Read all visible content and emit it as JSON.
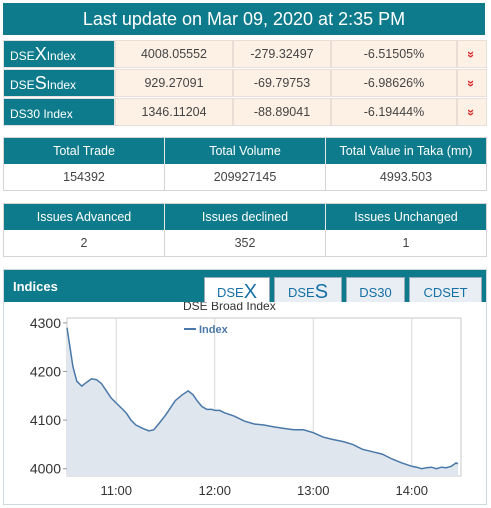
{
  "header": {
    "title": "Last update on Mar 09, 2020 at 2:35 PM"
  },
  "indices": [
    {
      "prefix": "DSE",
      "letter": "X",
      "suffix": " Index",
      "value": "4008.05552",
      "change": "-279.32497",
      "percent": "-6.51505%",
      "arrow": "»"
    },
    {
      "prefix": "DSE",
      "letter": "S",
      "suffix": " Index",
      "value": "929.27091",
      "change": "-69.79753",
      "percent": "-6.98626%",
      "arrow": "»"
    },
    {
      "prefix": "DS30 Index",
      "letter": "",
      "suffix": "",
      "value": "1346.11204",
      "change": "-88.89041",
      "percent": "-6.19444%",
      "arrow": "»"
    }
  ],
  "trade": {
    "headers": [
      "Total Trade",
      "Total Volume",
      "Total Value in Taka (mn)"
    ],
    "values": [
      "154392",
      "209927145",
      "4993.503"
    ]
  },
  "issues": {
    "headers": [
      "Issues Advanced",
      "Issues declined",
      "Issues Unchanged"
    ],
    "values": [
      "2",
      "352",
      "1"
    ]
  },
  "panel": {
    "title": "Indices",
    "tabs": [
      {
        "prefix": "DSE",
        "letter": "X",
        "active": true
      },
      {
        "prefix": "DSE",
        "letter": "S",
        "active": false
      },
      {
        "prefix": "DS30",
        "letter": "",
        "active": false
      },
      {
        "prefix": "CDSET",
        "letter": "",
        "active": false
      }
    ]
  },
  "colors": {
    "teal": "#0e7b8c",
    "down": "#d92b2b",
    "line": "#4a78a8",
    "fill": "#dfe6ee"
  },
  "chart_data": {
    "type": "area",
    "title": "DSE Broad Index",
    "legend": "Index",
    "legend_position": "top-left",
    "grid": true,
    "x_ticks": [
      "11:00",
      "12:00",
      "13:00",
      "14:00"
    ],
    "y_ticks": [
      4000,
      4100,
      4200,
      4300
    ],
    "xlim": [
      10.5,
      14.5
    ],
    "ylim": [
      3985,
      4310
    ],
    "series": [
      {
        "name": "Index",
        "x": [
          10.5,
          10.53,
          10.56,
          10.6,
          10.65,
          10.7,
          10.75,
          10.8,
          10.85,
          10.9,
          10.95,
          11.0,
          11.05,
          11.1,
          11.15,
          11.2,
          11.27,
          11.33,
          11.38,
          11.43,
          11.5,
          11.55,
          11.6,
          11.67,
          11.73,
          11.78,
          11.82,
          11.87,
          11.92,
          11.97,
          12.0,
          12.05,
          12.1,
          12.2,
          12.3,
          12.4,
          12.5,
          12.6,
          12.7,
          12.8,
          12.9,
          13.0,
          13.1,
          13.2,
          13.3,
          13.4,
          13.5,
          13.6,
          13.7,
          13.8,
          13.9,
          14.0,
          14.05,
          14.1,
          14.15,
          14.2,
          14.25,
          14.3,
          14.35,
          14.4,
          14.45,
          14.47
        ],
        "values": [
          4290,
          4250,
          4210,
          4180,
          4170,
          4178,
          4185,
          4183,
          4175,
          4160,
          4145,
          4135,
          4125,
          4115,
          4100,
          4090,
          4083,
          4078,
          4080,
          4092,
          4110,
          4125,
          4140,
          4152,
          4160,
          4152,
          4140,
          4128,
          4122,
          4122,
          4120,
          4120,
          4115,
          4108,
          4098,
          4092,
          4090,
          4086,
          4083,
          4080,
          4080,
          4074,
          4065,
          4060,
          4056,
          4050,
          4040,
          4035,
          4030,
          4020,
          4012,
          4005,
          4003,
          4000,
          4002,
          4003,
          4000,
          4003,
          4002,
          4005,
          4012,
          4010
        ]
      }
    ]
  }
}
